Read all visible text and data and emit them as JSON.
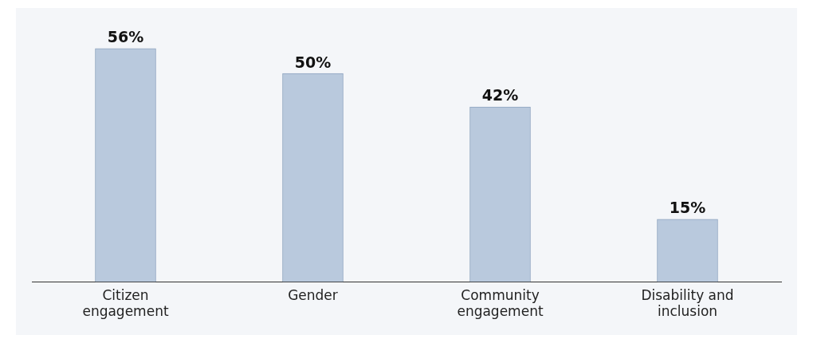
{
  "chart_data": {
    "type": "bar",
    "categories": [
      "Citizen engagement",
      "Gender",
      "Community engagement",
      "Disability and inclusion"
    ],
    "values": [
      56,
      50,
      42,
      15
    ],
    "color": "#b9c9dd",
    "value_labels": [
      "56%",
      "50%",
      "42%",
      "15%"
    ],
    "grid": false,
    "legend": false,
    "tick_labels": "x"
  }
}
